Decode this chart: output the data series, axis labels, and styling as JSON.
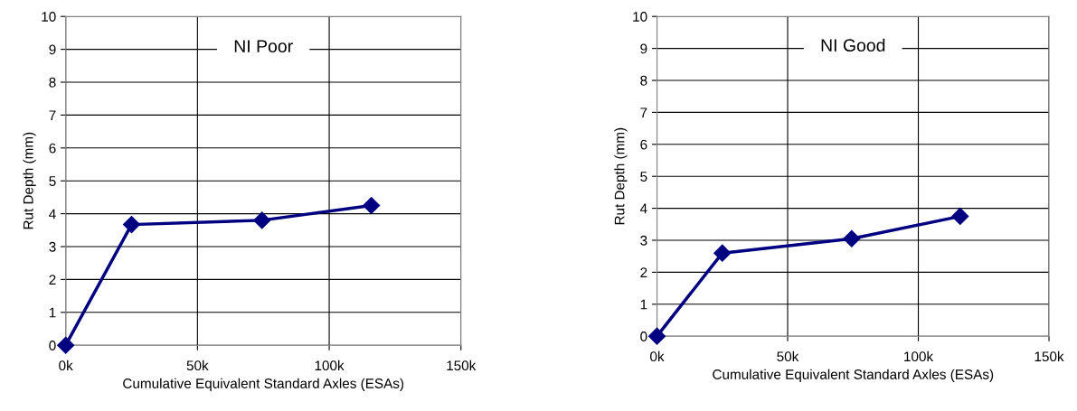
{
  "chart_data": [
    {
      "type": "line",
      "title": "NI Poor",
      "xlabel": "Cumulative Equivalent Standard Axles (ESAs)",
      "ylabel": "Rut Depth (mm)",
      "x": [
        0,
        25000,
        74500,
        116000
      ],
      "series": [
        {
          "color": "#000080",
          "values": [
            0,
            3.67,
            3.8,
            4.25
          ]
        }
      ],
      "xlim": [
        0,
        150000
      ],
      "xticks": [
        {
          "value": 0,
          "label": "0k"
        },
        {
          "value": 50000,
          "label": "50k"
        },
        {
          "value": 100000,
          "label": "100k"
        },
        {
          "value": 150000,
          "label": "150k"
        }
      ],
      "ylim": [
        0,
        10
      ],
      "yticks": [
        0,
        1,
        2,
        3,
        4,
        5,
        6,
        7,
        8,
        9,
        10
      ],
      "grid": true,
      "marker": "diamond",
      "line_style": "solid"
    },
    {
      "type": "line",
      "title": "NI Good",
      "xlabel": "Cumulative Equivalent Standard Axles (ESAs)",
      "ylabel": "Rut Depth (mm)",
      "x": [
        0,
        25000,
        74500,
        116000
      ],
      "series": [
        {
          "color": "#000080",
          "values": [
            0,
            2.6,
            3.05,
            3.75
          ]
        }
      ],
      "xlim": [
        0,
        150000
      ],
      "xticks": [
        {
          "value": 0,
          "label": "0k"
        },
        {
          "value": 50000,
          "label": "50k"
        },
        {
          "value": 100000,
          "label": "100k"
        },
        {
          "value": 150000,
          "label": "150k"
        }
      ],
      "ylim": [
        0,
        10
      ],
      "yticks": [
        0,
        1,
        2,
        3,
        4,
        5,
        6,
        7,
        8,
        9,
        10
      ],
      "grid": true,
      "marker": "diamond",
      "line_style": "solid"
    }
  ]
}
